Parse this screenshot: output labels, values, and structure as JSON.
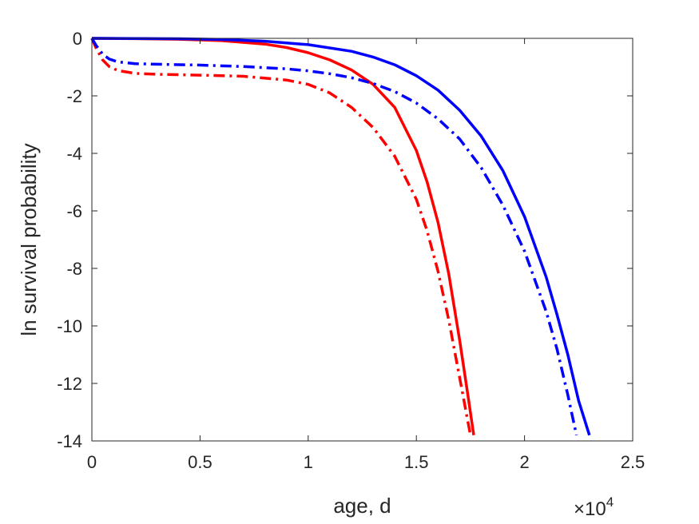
{
  "chart_data": {
    "type": "line",
    "title": "",
    "xlabel": "age, d",
    "ylabel": "ln survival probability",
    "x_multiplier_label": "×10",
    "x_multiplier_exponent": "4",
    "xlim": [
      0,
      25000
    ],
    "ylim": [
      -14,
      0
    ],
    "xticks": [
      0,
      5000,
      10000,
      15000,
      20000,
      25000
    ],
    "xtick_labels": [
      "0",
      "0.5",
      "1",
      "1.5",
      "2",
      "2.5"
    ],
    "yticks": [
      0,
      -2,
      -4,
      -6,
      -8,
      -10,
      -12,
      -14
    ],
    "ytick_labels": [
      "0",
      "-2",
      "-4",
      "-6",
      "-8",
      "-10",
      "-12",
      "-14"
    ],
    "grid": false,
    "series": [
      {
        "color": "#ff0000",
        "style": "solid",
        "x": [
          0,
          2000,
          4000,
          6000,
          8000,
          9000,
          10000,
          11000,
          12000,
          13000,
          14000,
          15000,
          15500,
          16000,
          16500,
          17000,
          17400,
          17650
        ],
        "y": [
          0,
          -0.01,
          -0.03,
          -0.08,
          -0.2,
          -0.32,
          -0.5,
          -0.75,
          -1.1,
          -1.6,
          -2.4,
          -3.9,
          -5.0,
          -6.4,
          -8.2,
          -10.5,
          -12.5,
          -13.8
        ]
      },
      {
        "color": "#ff0000",
        "style": "dashdot",
        "x": [
          0,
          200,
          500,
          800,
          1200,
          2000,
          3000,
          5000,
          7000,
          9000,
          10000,
          11000,
          12000,
          13000,
          14000,
          15000,
          15500,
          16000,
          16500,
          17000,
          17300,
          17500
        ],
        "y": [
          0,
          -0.35,
          -0.75,
          -0.98,
          -1.12,
          -1.22,
          -1.25,
          -1.28,
          -1.32,
          -1.45,
          -1.6,
          -1.9,
          -2.4,
          -3.1,
          -4.1,
          -5.6,
          -6.7,
          -8.1,
          -9.8,
          -11.8,
          -13.0,
          -13.8
        ]
      },
      {
        "color": "#0000ff",
        "style": "solid",
        "x": [
          0,
          2000,
          4000,
          6000,
          8000,
          10000,
          12000,
          13000,
          14000,
          15000,
          16000,
          17000,
          18000,
          19000,
          20000,
          21000,
          21500,
          22000,
          22500,
          23000
        ],
        "y": [
          0,
          -0.005,
          -0.015,
          -0.04,
          -0.1,
          -0.22,
          -0.45,
          -0.65,
          -0.92,
          -1.3,
          -1.8,
          -2.5,
          -3.4,
          -4.6,
          -6.2,
          -8.3,
          -9.6,
          -11.0,
          -12.6,
          -13.8
        ]
      },
      {
        "color": "#0000ff",
        "style": "dashdot",
        "x": [
          0,
          200,
          500,
          800,
          1200,
          2000,
          3000,
          5000,
          7000,
          9000,
          10000,
          11000,
          12000,
          13000,
          14000,
          15000,
          16000,
          17000,
          18000,
          19000,
          20000,
          21000,
          21500,
          22000,
          22400
        ],
        "y": [
          0,
          -0.25,
          -0.55,
          -0.72,
          -0.82,
          -0.88,
          -0.9,
          -0.93,
          -0.98,
          -1.06,
          -1.13,
          -1.23,
          -1.37,
          -1.57,
          -1.85,
          -2.25,
          -2.8,
          -3.5,
          -4.5,
          -5.8,
          -7.4,
          -9.5,
          -10.8,
          -12.4,
          -13.8
        ]
      }
    ]
  }
}
